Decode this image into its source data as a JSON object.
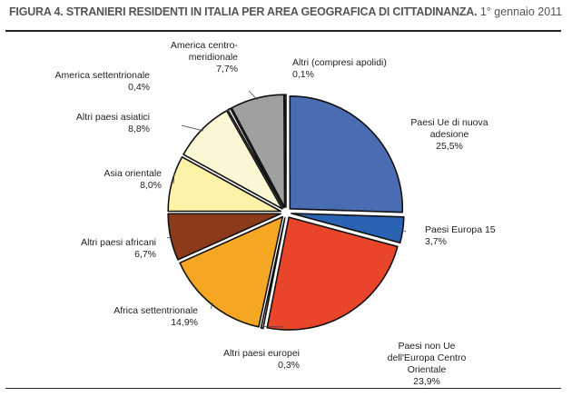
{
  "title": {
    "main": "FIGURA 4. STRANIERI RESIDENTI IN ITALIA PER AREA GEOGRAFICA DI CITTADINANZA.",
    "date": "1° gennaio 2011"
  },
  "chart_data": {
    "type": "pie",
    "categories": [
      "Paesi Ue di nuova adesione",
      "Paesi Europa 15",
      "Paesi non Ue dell'Europa Centro Orientale",
      "Altri paesi europei",
      "Africa settentrionale",
      "Altri paesi africani",
      "Asia orientale",
      "Altri paesi asiatici",
      "America settentrionale",
      "America centro-meridionale",
      "Altri (compresi apolidi)"
    ],
    "values": [
      25.5,
      3.7,
      23.9,
      0.3,
      14.9,
      6.7,
      8.0,
      8.8,
      0.4,
      7.7,
      0.1
    ],
    "value_labels": [
      "25,5%",
      "3,7%",
      "23,9%",
      "0,3%",
      "14,9%",
      "6,7%",
      "8,0%",
      "8,8%",
      "0,4%",
      "7,7%",
      "0,1%"
    ],
    "label_lines": [
      [
        "Paesi Ue di nuova",
        "adesione"
      ],
      [
        "Paesi Europa 15"
      ],
      [
        "Paesi non Ue",
        "dell'Europa Centro",
        "Orientale"
      ],
      [
        "Altri paesi europei"
      ],
      [
        "Africa settentrionale"
      ],
      [
        "Altri paesi africani"
      ],
      [
        "Asia orientale"
      ],
      [
        "Altri paesi asiatici"
      ],
      [
        "America settentrionale"
      ],
      [
        "America centro-",
        "meridionale"
      ],
      [
        "Altri (compresi apolidi)"
      ]
    ],
    "colors": [
      "#4a6cb3",
      "#2a62b4",
      "#e8452b",
      "#f2f2f2",
      "#f5a623",
      "#8b3a1c",
      "#fdf3a8",
      "#fbf6d4",
      "#ffffff",
      "#a0a0a0",
      "#ffffff"
    ],
    "start_angle_deg": 0,
    "direction": "clockwise",
    "exploded": true
  }
}
